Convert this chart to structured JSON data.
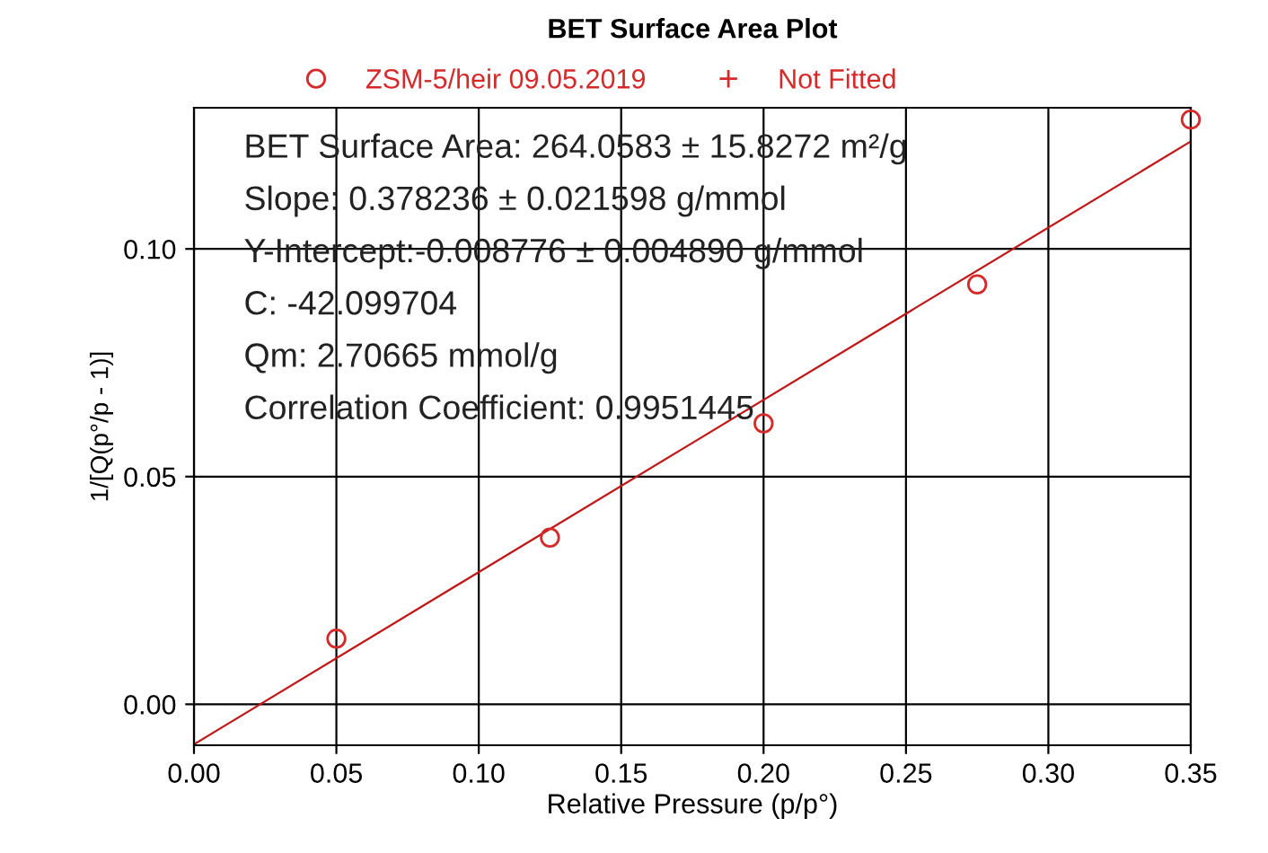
{
  "chart_data": {
    "type": "scatter",
    "title": "BET Surface Area Plot",
    "xlabel": "Relative Pressure (p/p°)",
    "ylabel": "1/[Q(p°/p - 1)]",
    "x": [
      0.05,
      0.125,
      0.2,
      0.275,
      0.35
    ],
    "series": [
      {
        "name": "ZSM-5/heir 09.05.2019",
        "color": "#d42a2a",
        "values": [
          0.0144,
          0.0366,
          0.0617,
          0.0922,
          0.1284
        ],
        "marker": "circle"
      },
      {
        "name": "Not Fitted",
        "color": "#d42a2a",
        "values": [
          null,
          null,
          null,
          null,
          null
        ],
        "marker": "cross"
      },
      {
        "type": "line",
        "color": "#c01818",
        "x": [
          0.0,
          0.35
        ],
        "values": [
          -0.0088,
          0.1236
        ],
        "marker": "none"
      }
    ],
    "xlim": [
      0.0,
      0.35
    ],
    "ylim": [
      -0.009,
      0.131
    ],
    "xticks": [
      {
        "value": 0.0,
        "label": "0.00"
      },
      {
        "value": 0.05,
        "label": "0.05"
      },
      {
        "value": 0.1,
        "label": "0.10"
      },
      {
        "value": 0.15,
        "label": "0.15"
      },
      {
        "value": 0.2,
        "label": "0.20"
      },
      {
        "value": 0.25,
        "label": "0.25"
      },
      {
        "value": 0.3,
        "label": "0.30"
      },
      {
        "value": 0.35,
        "label": "0.35"
      }
    ],
    "yticks": [
      {
        "value": 0.0,
        "label": "0.00"
      },
      {
        "value": 0.05,
        "label": "0.05"
      },
      {
        "value": 0.1,
        "label": "0.10"
      }
    ],
    "grid": true,
    "legend": "top",
    "annotations": [
      "BET Surface Area: 264.0583 ± 15.8272 m²/g",
      "Slope: 0.378236 ± 0.021598 g/mmol",
      "Y-Intercept:-0.008776 ± 0.004890 g/mmol",
      "C: -42.099704",
      "Qm: 2.70665 mmol/g",
      "Correlation Coefficient: 0.9951445"
    ]
  }
}
